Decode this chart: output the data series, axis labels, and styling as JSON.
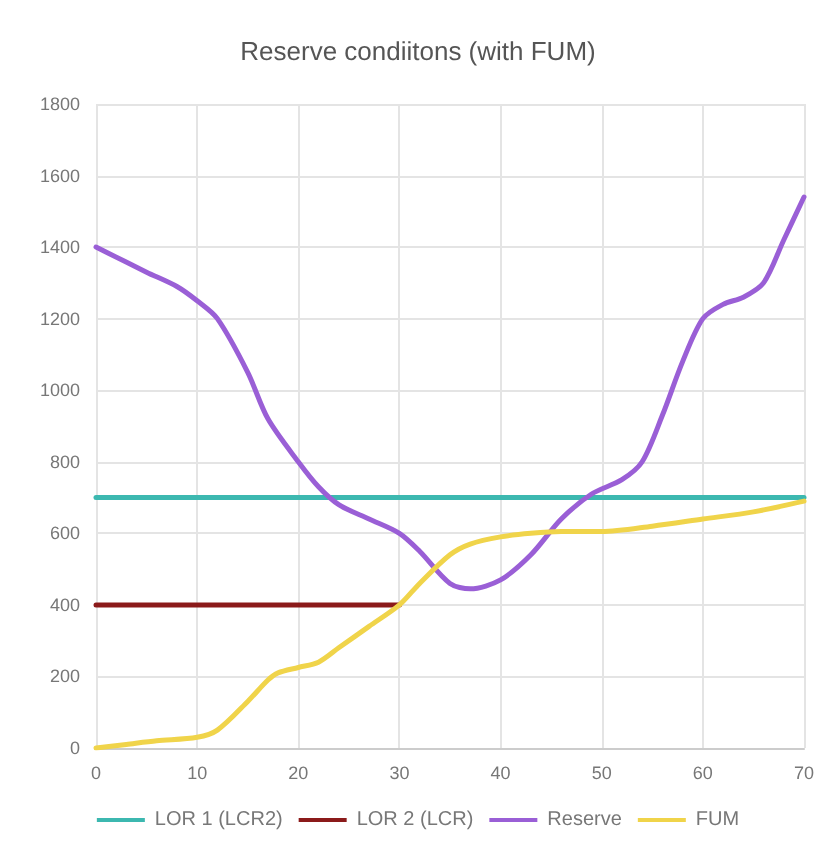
{
  "chart_data": {
    "type": "line",
    "title": "Reserve condiitons (with FUM)",
    "xlim": [
      0,
      70
    ],
    "xticks": [
      0,
      10,
      20,
      30,
      40,
      50,
      60,
      70
    ],
    "ylim": [
      0,
      1800
    ],
    "yticks": [
      0,
      200,
      400,
      600,
      800,
      1000,
      1200,
      1400,
      1600,
      1800
    ],
    "grid": true,
    "legend": "bottom",
    "marker": "none",
    "line_style": "solid",
    "series": [
      {
        "name": "LOR 1 (LCR2)",
        "color": "#3cb8b0",
        "x": [
          0,
          70
        ],
        "values": [
          700,
          700
        ]
      },
      {
        "name": "LOR 2 (LCR)",
        "color": "#8b1a1a",
        "x": [
          0,
          30
        ],
        "values": [
          400,
          400
        ]
      },
      {
        "name": "Reserve",
        "color": "#9a5fd6",
        "x": [
          0,
          5,
          8,
          10,
          12,
          15,
          17,
          20,
          22,
          24,
          27,
          30,
          32,
          35,
          37,
          40,
          43,
          46,
          49,
          52,
          54,
          56,
          58,
          60,
          62,
          64,
          66,
          68,
          70
        ],
        "values": [
          1400,
          1330,
          1290,
          1250,
          1200,
          1050,
          920,
          800,
          730,
          680,
          640,
          600,
          550,
          460,
          445,
          470,
          540,
          640,
          710,
          750,
          800,
          930,
          1080,
          1200,
          1240,
          1260,
          1300,
          1420,
          1540
        ]
      },
      {
        "name": "FUM",
        "color": "#f0d44a",
        "x": [
          0,
          3,
          6,
          10,
          12,
          15,
          17,
          18,
          20,
          22,
          24,
          27,
          30,
          32,
          35,
          37,
          40,
          43,
          46,
          50,
          55,
          60,
          65,
          70
        ],
        "values": [
          0,
          10,
          20,
          30,
          50,
          130,
          190,
          210,
          225,
          240,
          280,
          340,
          400,
          460,
          540,
          570,
          590,
          600,
          605,
          605,
          620,
          640,
          660,
          690
        ]
      }
    ]
  }
}
